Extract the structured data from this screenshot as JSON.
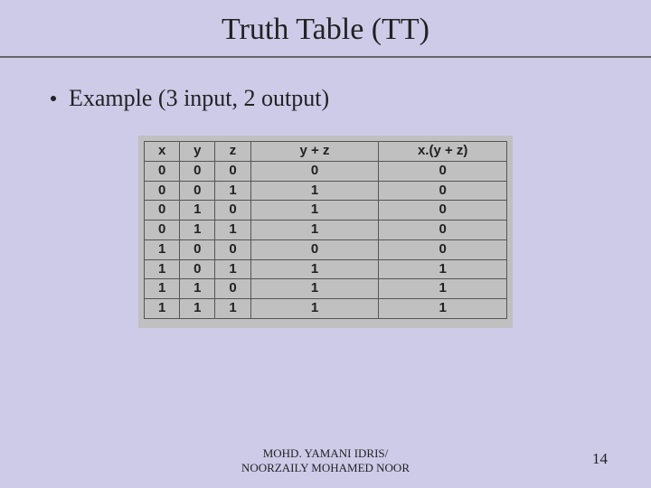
{
  "title": "Truth Table (TT)",
  "bullet": "Example (3 input, 2 output)",
  "table": {
    "type": "table",
    "background_color": "#c0c0c0",
    "border_color": "#555555",
    "header_fontweight": "bold",
    "cell_fontsize": 15,
    "columns": [
      "x",
      "y",
      "z",
      "y + z",
      "x.(y + z)"
    ],
    "column_widths": [
      "36px",
      "36px",
      "36px",
      "130px",
      "130px"
    ],
    "rows": [
      [
        "0",
        "0",
        "0",
        "0",
        "0"
      ],
      [
        "0",
        "0",
        "1",
        "1",
        "0"
      ],
      [
        "0",
        "1",
        "0",
        "1",
        "0"
      ],
      [
        "0",
        "1",
        "1",
        "1",
        "0"
      ],
      [
        "1",
        "0",
        "0",
        "0",
        "0"
      ],
      [
        "1",
        "0",
        "1",
        "1",
        "1"
      ],
      [
        "1",
        "1",
        "0",
        "1",
        "1"
      ],
      [
        "1",
        "1",
        "1",
        "1",
        "1"
      ]
    ]
  },
  "footer_line1": "MOHD. YAMANI IDRIS/",
  "footer_line2": "NOORZAILY MOHAMED NOOR",
  "page_number": "14",
  "slide_background": "#cdcbe8"
}
